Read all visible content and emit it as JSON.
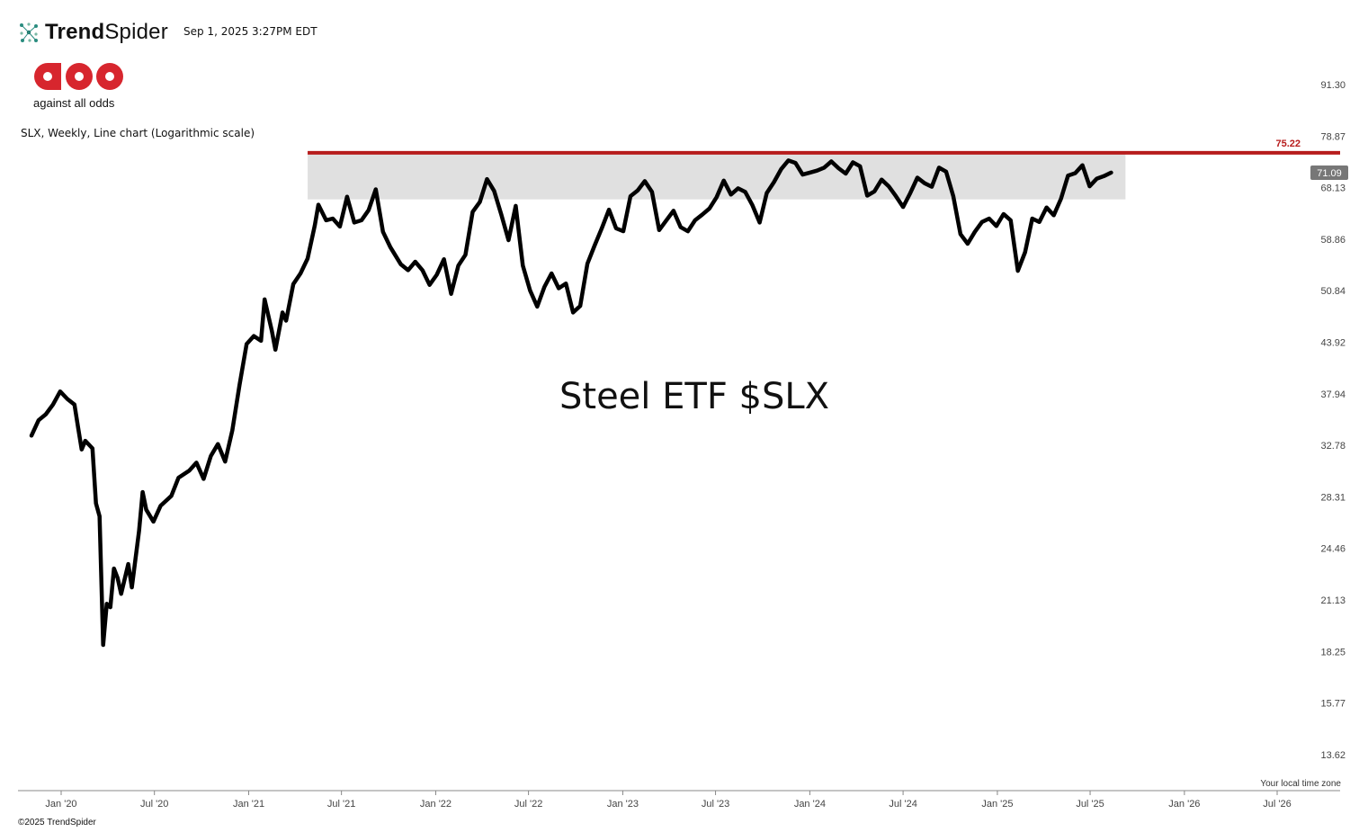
{
  "header": {
    "brand_prefix": "Trend",
    "brand_suffix": "Spider",
    "timestamp": "Sep 1, 2025 3:27PM EDT",
    "logo_text": "against all odds",
    "subtitle": "SLX, Weekly, Line chart (Logarithmic scale)"
  },
  "footer": {
    "copyright": "©2025 TrendSpider",
    "timezone": "Your local time zone"
  },
  "colors": {
    "line": "#000000",
    "resistance": "#b71c1c",
    "zone": "#e0e0e0",
    "price_tag": "#777777",
    "logo_red": "#d7262e"
  },
  "chart_data": {
    "type": "line",
    "scale": "log",
    "title": "SLX, Weekly, Line chart (Logarithmic scale)",
    "annotation": "Steel ETF $SLX",
    "y_ticks": [
      91.3,
      78.87,
      68.13,
      58.86,
      50.84,
      43.92,
      37.94,
      32.78,
      28.31,
      24.46,
      21.13,
      18.25,
      15.77,
      13.62
    ],
    "y_tick_labels": [
      "91.30",
      "78.87",
      "68.13",
      "58.86",
      "50.84",
      "43.92",
      "37.94",
      "32.78",
      "28.31",
      "24.46",
      "21.13",
      "18.25",
      "15.77",
      "13.62"
    ],
    "x_ticks": [
      "2020-01-01",
      "2020-07-01",
      "2021-01-01",
      "2021-07-01",
      "2022-01-01",
      "2022-07-01",
      "2023-01-01",
      "2023-07-01",
      "2024-01-01",
      "2024-07-01",
      "2025-01-01",
      "2025-07-01",
      "2026-01-01",
      "2026-07-01"
    ],
    "x_tick_labels": [
      "Jan '20",
      "Jul '20",
      "Jan '21",
      "Jul '21",
      "Jan '22",
      "Jul '22",
      "Jan '23",
      "Jul '23",
      "Jan '24",
      "Jul '24",
      "Jan '25",
      "Jul '25",
      "Jan '26",
      "Jul '26"
    ],
    "resistance": {
      "value": 75.22,
      "label": "75.22",
      "start": "2021-04-26"
    },
    "zone": {
      "start": "2021-04-26",
      "end": "2025-09-08",
      "low": 65.9,
      "high": 75.22
    },
    "last_price": {
      "value": 71.09,
      "label": "71.09"
    },
    "grid": false,
    "series": [
      {
        "points": [
          [
            "2019-11-04",
            33.7
          ],
          [
            "2019-11-18",
            35.2
          ],
          [
            "2019-12-02",
            35.8
          ],
          [
            "2019-12-16",
            36.8
          ],
          [
            "2019-12-30",
            38.2
          ],
          [
            "2020-01-13",
            37.4
          ],
          [
            "2020-01-27",
            36.8
          ],
          [
            "2020-02-03",
            34.5
          ],
          [
            "2020-02-10",
            32.4
          ],
          [
            "2020-02-17",
            33.2
          ],
          [
            "2020-03-02",
            32.5
          ],
          [
            "2020-03-09",
            27.8
          ],
          [
            "2020-03-16",
            26.8
          ],
          [
            "2020-03-23",
            18.6
          ],
          [
            "2020-03-30",
            20.9
          ],
          [
            "2020-04-06",
            20.7
          ],
          [
            "2020-04-13",
            23.1
          ],
          [
            "2020-04-20",
            22.5
          ],
          [
            "2020-04-27",
            21.5
          ],
          [
            "2020-05-11",
            23.4
          ],
          [
            "2020-05-18",
            21.9
          ],
          [
            "2020-06-01",
            25.7
          ],
          [
            "2020-06-08",
            28.7
          ],
          [
            "2020-06-15",
            27.3
          ],
          [
            "2020-06-29",
            26.4
          ],
          [
            "2020-07-13",
            27.6
          ],
          [
            "2020-08-03",
            28.4
          ],
          [
            "2020-08-17",
            29.9
          ],
          [
            "2020-09-07",
            30.5
          ],
          [
            "2020-09-21",
            31.2
          ],
          [
            "2020-10-05",
            29.8
          ],
          [
            "2020-10-19",
            31.8
          ],
          [
            "2020-11-02",
            32.9
          ],
          [
            "2020-11-16",
            31.3
          ],
          [
            "2020-11-30",
            34.2
          ],
          [
            "2020-12-14",
            38.9
          ],
          [
            "2020-12-28",
            43.7
          ],
          [
            "2021-01-11",
            44.7
          ],
          [
            "2021-01-25",
            44.1
          ],
          [
            "2021-02-01",
            49.6
          ],
          [
            "2021-02-15",
            45.4
          ],
          [
            "2021-02-22",
            43.0
          ],
          [
            "2021-03-08",
            47.8
          ],
          [
            "2021-03-15",
            46.7
          ],
          [
            "2021-03-29",
            51.8
          ],
          [
            "2021-04-12",
            53.4
          ],
          [
            "2021-04-26",
            55.7
          ],
          [
            "2021-05-10",
            61.2
          ],
          [
            "2021-05-17",
            64.9
          ],
          [
            "2021-06-01",
            62.1
          ],
          [
            "2021-06-14",
            62.4
          ],
          [
            "2021-06-28",
            61.0
          ],
          [
            "2021-07-12",
            66.4
          ],
          [
            "2021-07-26",
            61.7
          ],
          [
            "2021-08-09",
            62.1
          ],
          [
            "2021-08-23",
            63.9
          ],
          [
            "2021-09-06",
            67.8
          ],
          [
            "2021-09-20",
            60.1
          ],
          [
            "2021-10-04",
            57.6
          ],
          [
            "2021-10-25",
            54.8
          ],
          [
            "2021-11-08",
            53.9
          ],
          [
            "2021-11-22",
            55.2
          ],
          [
            "2021-12-06",
            53.9
          ],
          [
            "2021-12-20",
            51.7
          ],
          [
            "2022-01-03",
            53.2
          ],
          [
            "2022-01-17",
            55.6
          ],
          [
            "2022-01-31",
            50.4
          ],
          [
            "2022-02-14",
            54.6
          ],
          [
            "2022-02-28",
            56.3
          ],
          [
            "2022-03-14",
            63.6
          ],
          [
            "2022-03-28",
            65.4
          ],
          [
            "2022-04-11",
            69.8
          ],
          [
            "2022-04-25",
            67.5
          ],
          [
            "2022-05-09",
            63.1
          ],
          [
            "2022-05-23",
            58.7
          ],
          [
            "2022-06-06",
            64.7
          ],
          [
            "2022-06-20",
            54.6
          ],
          [
            "2022-07-04",
            50.9
          ],
          [
            "2022-07-18",
            48.6
          ],
          [
            "2022-08-01",
            51.4
          ],
          [
            "2022-08-15",
            53.4
          ],
          [
            "2022-08-29",
            51.2
          ],
          [
            "2022-09-12",
            51.9
          ],
          [
            "2022-09-26",
            47.8
          ],
          [
            "2022-10-10",
            48.7
          ],
          [
            "2022-10-24",
            54.9
          ],
          [
            "2022-11-07",
            57.8
          ],
          [
            "2022-11-21",
            60.7
          ],
          [
            "2022-12-05",
            64.0
          ],
          [
            "2022-12-19",
            60.7
          ],
          [
            "2023-01-02",
            60.2
          ],
          [
            "2023-01-16",
            66.5
          ],
          [
            "2023-01-30",
            67.6
          ],
          [
            "2023-02-13",
            69.4
          ],
          [
            "2023-02-27",
            67.3
          ],
          [
            "2023-03-13",
            60.4
          ],
          [
            "2023-03-27",
            62.1
          ],
          [
            "2023-04-10",
            63.8
          ],
          [
            "2023-04-24",
            60.9
          ],
          [
            "2023-05-08",
            60.2
          ],
          [
            "2023-05-22",
            62.1
          ],
          [
            "2023-06-05",
            63.1
          ],
          [
            "2023-06-19",
            64.2
          ],
          [
            "2023-07-03",
            66.3
          ],
          [
            "2023-07-17",
            69.5
          ],
          [
            "2023-07-31",
            66.8
          ],
          [
            "2023-08-14",
            68.0
          ],
          [
            "2023-08-28",
            67.3
          ],
          [
            "2023-09-11",
            64.8
          ],
          [
            "2023-09-25",
            61.7
          ],
          [
            "2023-10-09",
            67.1
          ],
          [
            "2023-10-23",
            69.2
          ],
          [
            "2023-11-06",
            71.8
          ],
          [
            "2023-11-20",
            73.6
          ],
          [
            "2023-12-04",
            73.1
          ],
          [
            "2023-12-18",
            70.7
          ],
          [
            "2024-01-01",
            71.1
          ],
          [
            "2024-01-15",
            71.5
          ],
          [
            "2024-01-29",
            72.1
          ],
          [
            "2024-02-12",
            73.4
          ],
          [
            "2024-02-26",
            72.0
          ],
          [
            "2024-03-11",
            70.9
          ],
          [
            "2024-03-25",
            73.2
          ],
          [
            "2024-04-08",
            72.4
          ],
          [
            "2024-04-22",
            66.6
          ],
          [
            "2024-05-06",
            67.4
          ],
          [
            "2024-05-20",
            69.7
          ],
          [
            "2024-06-03",
            68.4
          ],
          [
            "2024-06-17",
            66.5
          ],
          [
            "2024-07-01",
            64.5
          ],
          [
            "2024-07-15",
            67.1
          ],
          [
            "2024-07-29",
            70.1
          ],
          [
            "2024-08-12",
            69.0
          ],
          [
            "2024-08-26",
            68.3
          ],
          [
            "2024-09-09",
            72.1
          ],
          [
            "2024-09-23",
            71.3
          ],
          [
            "2024-10-07",
            66.5
          ],
          [
            "2024-10-21",
            59.7
          ],
          [
            "2024-11-04",
            58.1
          ],
          [
            "2024-11-18",
            60.1
          ],
          [
            "2024-12-02",
            61.8
          ],
          [
            "2024-12-16",
            62.4
          ],
          [
            "2024-12-30",
            61.1
          ],
          [
            "2025-01-13",
            63.2
          ],
          [
            "2025-01-27",
            62.1
          ],
          [
            "2025-02-10",
            53.8
          ],
          [
            "2025-02-24",
            56.7
          ],
          [
            "2025-03-10",
            62.4
          ],
          [
            "2025-03-24",
            61.8
          ],
          [
            "2025-04-07",
            64.4
          ],
          [
            "2025-04-21",
            63.0
          ],
          [
            "2025-05-05",
            66.0
          ],
          [
            "2025-05-19",
            70.5
          ],
          [
            "2025-06-02",
            71.0
          ],
          [
            "2025-06-16",
            72.6
          ],
          [
            "2025-06-30",
            68.4
          ],
          [
            "2025-07-14",
            69.9
          ],
          [
            "2025-07-28",
            70.4
          ],
          [
            "2025-08-11",
            71.1
          ]
        ]
      }
    ]
  }
}
